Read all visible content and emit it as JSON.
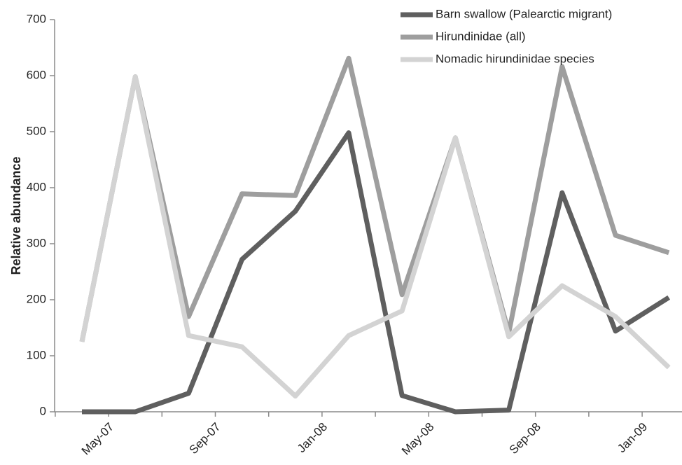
{
  "chart_data": {
    "type": "line",
    "ylabel": "Relative abundance",
    "xlabel": "",
    "ylim": [
      0,
      700
    ],
    "yticks": [
      0,
      100,
      200,
      300,
      400,
      500,
      600,
      700
    ],
    "x_tick_labels": [
      "May-07",
      "Sep-07",
      "Jan-08",
      "May-08",
      "Sep-08",
      "Jan-09"
    ],
    "x": [
      "May-07",
      "Jul-07",
      "Sep-07",
      "Nov-07",
      "Jan-08",
      "Mar-08",
      "May-08",
      "Jul-08",
      "Sep-08",
      "Nov-08",
      "Jan-09",
      "Mar-09"
    ],
    "legend_position": "top-right",
    "grid": false,
    "series": [
      {
        "name": "Barn swallow (Palearctic migrant)",
        "color": "#5f5f5f",
        "values": [
          0,
          0,
          33,
          272,
          358,
          498,
          29,
          0,
          3,
          391,
          144,
          204
        ]
      },
      {
        "name": "Hirundinidae (all)",
        "color": "#9e9e9e",
        "values": [
          125,
          598,
          170,
          389,
          386,
          631,
          209,
          489,
          141,
          616,
          315,
          284
        ]
      },
      {
        "name": "Nomadic hirundinidae species",
        "color": "#d3d3d3",
        "values": [
          125,
          598,
          136,
          116,
          28,
          136,
          180,
          489,
          134,
          225,
          170,
          79
        ]
      }
    ]
  }
}
